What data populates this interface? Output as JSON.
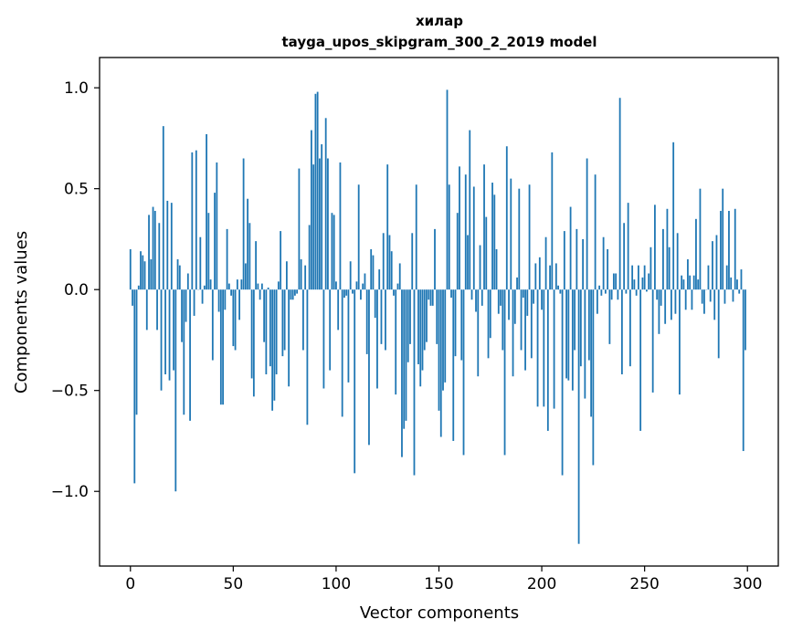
{
  "chart_data": {
    "type": "bar",
    "title": "хилар",
    "subtitle": "tayga_upos_skipgram_300_2_2019 model",
    "xlabel": "Vector components",
    "ylabel": "Components values",
    "xlim": [
      -15,
      315
    ],
    "ylim": [
      -1.37,
      1.15
    ],
    "xticks": [
      0,
      50,
      100,
      150,
      200,
      250,
      300
    ],
    "xtick_labels": [
      "0",
      "50",
      "100",
      "150",
      "200",
      "250",
      "300"
    ],
    "yticks": [
      -1.0,
      -0.5,
      0.0,
      0.5,
      1.0
    ],
    "ytick_labels": [
      "−1.0",
      "−0.5",
      "0.0",
      "0.5",
      "1.0"
    ],
    "bar_color": "#1f77b4",
    "grid": false,
    "legend": "none",
    "values": [
      0.2,
      -0.08,
      -0.96,
      -0.62,
      0.02,
      0.19,
      0.17,
      0.14,
      -0.2,
      0.37,
      0.15,
      0.41,
      0.39,
      -0.2,
      0.33,
      -0.5,
      0.81,
      -0.42,
      0.44,
      -0.45,
      0.43,
      -0.4,
      -1.0,
      0.15,
      0.12,
      -0.26,
      -0.62,
      -0.16,
      0.08,
      -0.65,
      0.68,
      -0.13,
      0.69,
      0.0,
      0.26,
      -0.07,
      0.02,
      0.77,
      0.38,
      0.05,
      -0.35,
      0.48,
      0.63,
      -0.11,
      -0.57,
      -0.57,
      -0.1,
      0.3,
      0.03,
      -0.03,
      -0.28,
      -0.3,
      0.05,
      -0.15,
      0.05,
      0.65,
      0.13,
      0.45,
      0.33,
      -0.44,
      -0.53,
      0.24,
      0.03,
      -0.05,
      0.03,
      -0.26,
      -0.42,
      0.01,
      -0.38,
      -0.6,
      -0.55,
      -0.42,
      0.04,
      0.29,
      -0.33,
      -0.3,
      0.14,
      -0.48,
      -0.05,
      -0.05,
      -0.03,
      -0.02,
      0.6,
      0.15,
      -0.3,
      0.12,
      -0.67,
      0.32,
      0.79,
      0.62,
      0.97,
      0.98,
      0.65,
      0.72,
      -0.49,
      0.85,
      0.65,
      -0.4,
      0.38,
      0.37,
      0.04,
      -0.2,
      0.63,
      -0.63,
      -0.04,
      -0.03,
      -0.46,
      0.14,
      -0.02,
      -0.91,
      0.04,
      0.52,
      -0.05,
      0.03,
      0.08,
      -0.32,
      -0.77,
      0.2,
      0.17,
      -0.14,
      -0.49,
      0.1,
      -0.27,
      0.28,
      -0.3,
      0.62,
      0.27,
      0.19,
      -0.03,
      -0.52,
      0.03,
      0.13,
      -0.83,
      -0.69,
      -0.65,
      -0.36,
      -0.27,
      0.28,
      -0.92,
      0.52,
      -0.37,
      -0.48,
      -0.4,
      -0.3,
      -0.26,
      -0.05,
      -0.08,
      -0.08,
      0.3,
      -0.27,
      -0.6,
      -0.73,
      -0.5,
      -0.46,
      0.99,
      0.52,
      -0.04,
      -0.75,
      -0.33,
      0.38,
      0.61,
      -0.35,
      -0.82,
      0.57,
      0.27,
      0.79,
      -0.05,
      0.51,
      -0.11,
      -0.43,
      0.22,
      -0.08,
      0.62,
      0.36,
      -0.34,
      -0.24,
      0.53,
      0.47,
      0.2,
      -0.12,
      -0.08,
      -0.3,
      -0.82,
      0.71,
      -0.15,
      0.55,
      -0.43,
      -0.17,
      0.06,
      0.5,
      -0.3,
      -0.04,
      -0.4,
      -0.13,
      0.52,
      -0.34,
      -0.07,
      0.13,
      -0.58,
      0.16,
      -0.1,
      -0.58,
      0.26,
      -0.7,
      0.12,
      0.68,
      -0.59,
      0.13,
      0.02,
      -0.02,
      -0.92,
      0.29,
      -0.44,
      -0.45,
      0.41,
      -0.5,
      -0.3,
      0.3,
      -1.26,
      -0.38,
      0.25,
      -0.54,
      0.65,
      -0.35,
      -0.63,
      -0.87,
      0.57,
      -0.12,
      0.02,
      -0.03,
      0.26,
      -0.02,
      0.2,
      -0.27,
      -0.05,
      0.08,
      0.08,
      -0.05,
      0.95,
      -0.42,
      0.33,
      -0.02,
      0.43,
      -0.38,
      0.12,
      0.05,
      -0.03,
      0.12,
      -0.7,
      0.06,
      0.12,
      -0.01,
      0.08,
      0.21,
      -0.51,
      0.42,
      -0.05,
      -0.22,
      -0.08,
      0.3,
      -0.17,
      0.4,
      0.21,
      -0.15,
      0.73,
      -0.12,
      0.28,
      -0.52,
      0.07,
      0.05,
      -0.1,
      0.15,
      0.07,
      -0.1,
      0.07,
      0.35,
      0.05,
      0.5,
      -0.07,
      -0.12,
      0.0,
      0.12,
      -0.06,
      0.24,
      -0.15,
      0.27,
      -0.34,
      0.39,
      0.5,
      -0.07,
      0.12,
      0.39,
      0.06,
      -0.06,
      0.4,
      0.05,
      -0.02,
      0.1,
      -0.8,
      -0.3
    ]
  }
}
